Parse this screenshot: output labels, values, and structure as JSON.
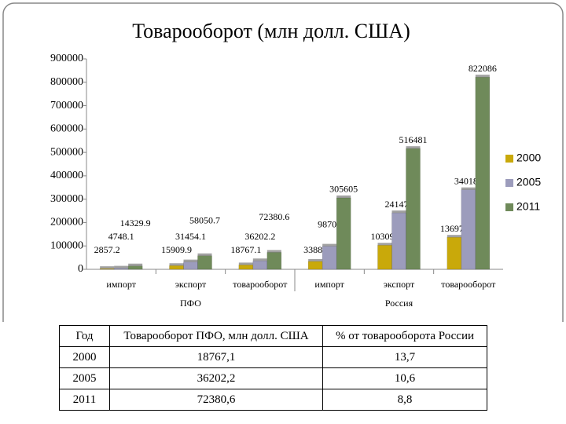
{
  "chart_data": {
    "type": "bar",
    "title": "Товарооборот (млн долл. США)",
    "categories": [
      "импорт",
      "экспорт",
      "товарооборот",
      "импорт",
      "экспорт",
      "товарооборот"
    ],
    "groups": [
      "ПФО",
      "Россия"
    ],
    "series": [
      {
        "name": "2000",
        "color": "#c9a90a",
        "values": [
          2857.2,
          15909.9,
          18767.1,
          33880,
          103093,
          136973
        ]
      },
      {
        "name": "2005",
        "color": "#9c9cbc",
        "values": [
          4748.1,
          31454.1,
          36202.2,
          98708,
          241473,
          340181
        ]
      },
      {
        "name": "2011",
        "color": "#6f8a5a",
        "values": [
          14329.9,
          58050.7,
          72380.6,
          305605,
          516481,
          822086
        ]
      }
    ],
    "ylim": [
      0,
      900000
    ],
    "yticks": [
      0,
      100000,
      200000,
      300000,
      400000,
      500000,
      600000,
      700000,
      800000,
      900000
    ],
    "grid": false,
    "legend": "right"
  },
  "table": {
    "header": [
      "Год",
      "Товарооборот ПФО, млн долл. США",
      "% от товарооборота России"
    ],
    "rows": [
      [
        "2000",
        "18767,1",
        "13,7"
      ],
      [
        "2005",
        "36202,2",
        "10,6"
      ],
      [
        "2011",
        "72380,6",
        "8,8"
      ]
    ]
  }
}
